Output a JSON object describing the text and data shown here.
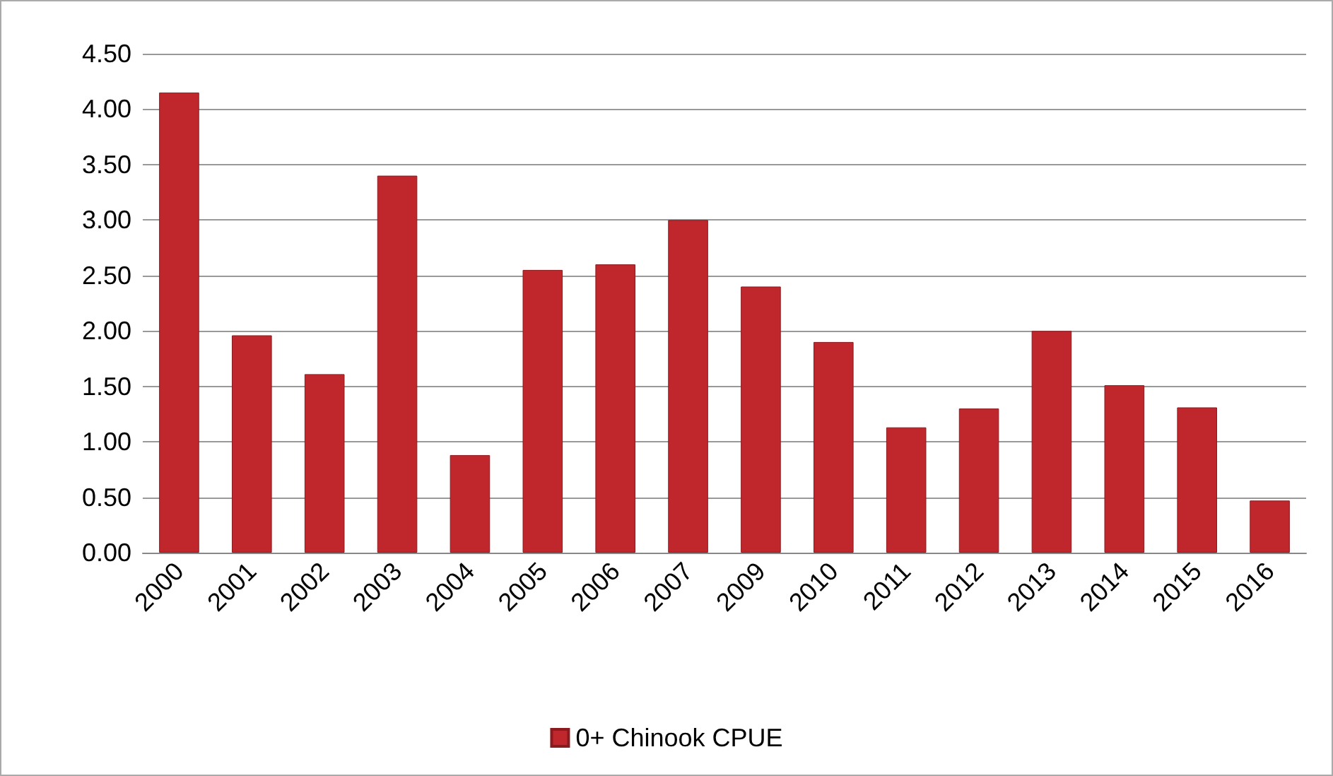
{
  "chart_data": {
    "type": "bar",
    "categories": [
      "2000",
      "2001",
      "2002",
      "2003",
      "2004",
      "2005",
      "2006",
      "2007",
      "2009",
      "2010",
      "2011",
      "2012",
      "2013",
      "2014",
      "2015",
      "2016"
    ],
    "series": [
      {
        "name": "0+ Chinook CPUE",
        "color": "#c0272d",
        "values": [
          4.15,
          1.96,
          1.61,
          3.4,
          0.88,
          2.55,
          2.6,
          3.0,
          2.4,
          1.9,
          1.13,
          1.3,
          2.0,
          1.51,
          1.31,
          0.47
        ]
      }
    ],
    "ylim": [
      0,
      4.5
    ],
    "yticks": [
      {
        "value": 0,
        "label": "0.00"
      },
      {
        "value": 0.5,
        "label": "0.50"
      },
      {
        "value": 1,
        "label": "1.00"
      },
      {
        "value": 1.5,
        "label": "1.50"
      },
      {
        "value": 2,
        "label": "2.00"
      },
      {
        "value": 2.5,
        "label": "2.50"
      },
      {
        "value": 3,
        "label": "3.00"
      },
      {
        "value": 3.5,
        "label": "3.50"
      },
      {
        "value": 4,
        "label": "4.00"
      },
      {
        "value": 4.5,
        "label": "4.50"
      }
    ],
    "grid": "y",
    "legend": "bottom"
  }
}
